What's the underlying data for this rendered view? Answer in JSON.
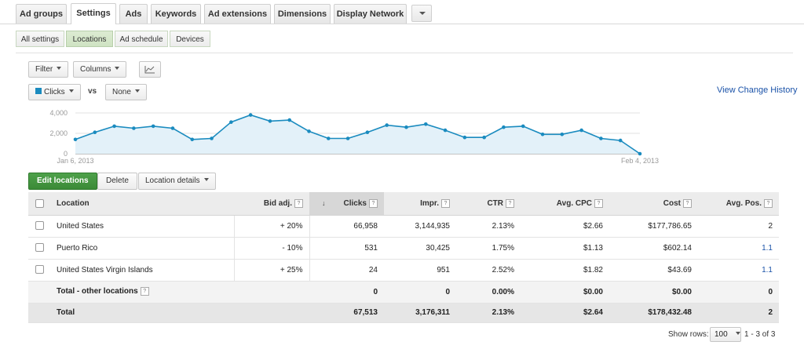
{
  "tabs": [
    {
      "label": "Ad groups"
    },
    {
      "label": "Settings"
    },
    {
      "label": "Ads"
    },
    {
      "label": "Keywords"
    },
    {
      "label": "Ad extensions"
    },
    {
      "label": "Dimensions"
    },
    {
      "label": "Display Network"
    }
  ],
  "subtabs": [
    {
      "label": "All settings"
    },
    {
      "label": "Locations"
    },
    {
      "label": "Ad schedule"
    },
    {
      "label": "Devices"
    }
  ],
  "toolbar": {
    "filter": "Filter",
    "columns": "Columns"
  },
  "chart_controls": {
    "metric": "Clicks",
    "vs": "vs",
    "compare": "None",
    "history_link": "View Change History"
  },
  "chart_data": {
    "type": "area",
    "title": "",
    "series": [
      {
        "name": "Clicks",
        "values": [
          1400,
          2100,
          2700,
          2500,
          2700,
          2500,
          1400,
          1500,
          3100,
          3800,
          3200,
          3300,
          2200,
          1500,
          1500,
          2100,
          2800,
          2600,
          2900,
          2300,
          1600,
          1600,
          2600,
          2700,
          1900,
          1900,
          2300,
          1500,
          1300,
          0
        ]
      }
    ],
    "ylim": [
      0,
      4000
    ],
    "y_ticks": [
      "4,000",
      "2,000",
      "0"
    ],
    "x_labels": [
      "Jan 6, 2013",
      "Feb 4, 2013"
    ],
    "colors": {
      "line": "#1a8bbf",
      "fill": "#e3f1f9"
    }
  },
  "actions": {
    "edit": "Edit locations",
    "delete": "Delete",
    "details": "Location details"
  },
  "table": {
    "headers": {
      "location": "Location",
      "bid": "Bid adj.",
      "clicks": "Clicks",
      "impr": "Impr.",
      "ctr": "CTR",
      "cpc": "Avg. CPC",
      "cost": "Cost",
      "pos": "Avg. Pos."
    },
    "rows": [
      {
        "location": "United States",
        "bid": "+ 20%",
        "clicks": "66,958",
        "impr": "3,144,935",
        "ctr": "2.13%",
        "cpc": "$2.66",
        "cost": "$177,786.65",
        "pos": "2"
      },
      {
        "location": "Puerto Rico",
        "bid": "- 10%",
        "clicks": "531",
        "impr": "30,425",
        "ctr": "1.75%",
        "cpc": "$1.13",
        "cost": "$602.14",
        "pos": "1.1"
      },
      {
        "location": "United States Virgin Islands",
        "bid": "+ 25%",
        "clicks": "24",
        "impr": "951",
        "ctr": "2.52%",
        "cpc": "$1.82",
        "cost": "$43.69",
        "pos": "1.1"
      }
    ],
    "other": {
      "label": "Total - other locations",
      "clicks": "0",
      "impr": "0",
      "ctr": "0.00%",
      "cpc": "$0.00",
      "cost": "$0.00",
      "pos": "0"
    },
    "total": {
      "label": "Total",
      "clicks": "67,513",
      "impr": "3,176,311",
      "ctr": "2.13%",
      "cpc": "$2.64",
      "cost": "$178,432.48",
      "pos": "2"
    }
  },
  "footer": {
    "show_rows_label": "Show rows:",
    "rows_value": "100",
    "range": "1 - 3 of 3"
  }
}
